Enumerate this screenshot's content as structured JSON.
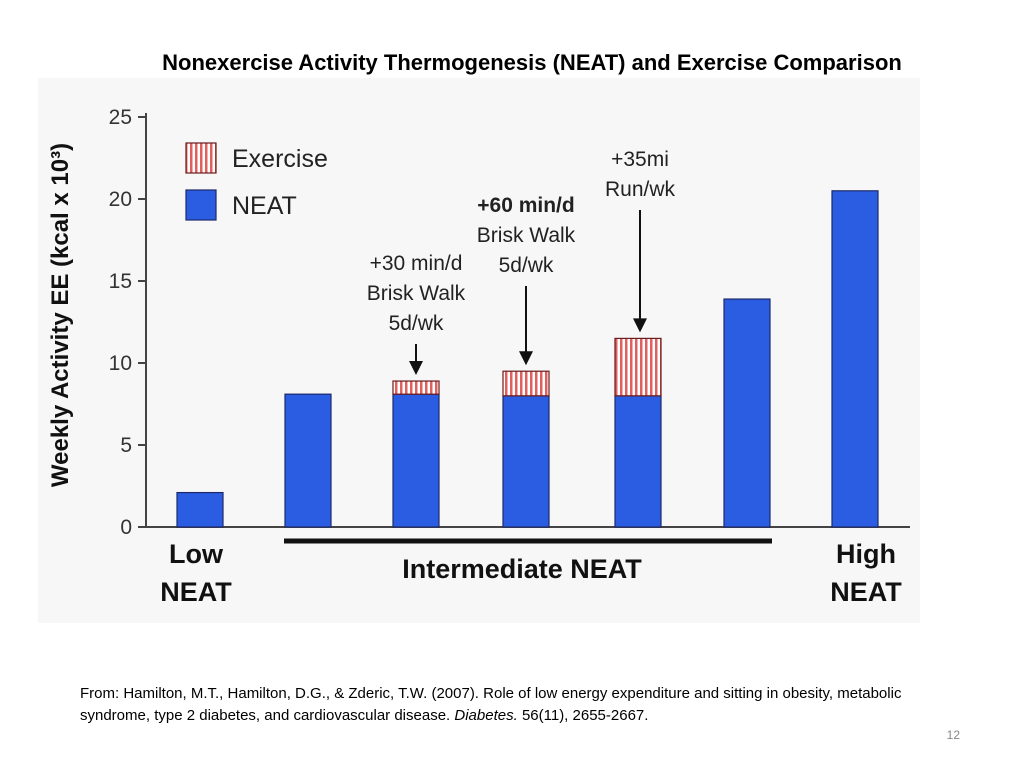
{
  "slide": {
    "title": "Nonexercise Activity Thermogenesis (NEAT) and Exercise Comparison",
    "page_number": "12",
    "citation": {
      "prefix": "From: Hamilton, M.T., Hamilton, D.G., & Zderic, T.W. (2007). Role of low energy expenditure and sitting in obesity, metabolic syndrome, type 2 diabetes, and cardiovascular disease.",
      "journal": "Diabetes.",
      "suffix": "56(11), 2655-2667."
    }
  },
  "chart_data": {
    "type": "bar",
    "stacked": true,
    "ylabel": "Weekly Activity EE (kcal x 10³)",
    "ylim": [
      0,
      25
    ],
    "yticks": [
      "0",
      "5",
      "10",
      "15",
      "20",
      "25"
    ],
    "grid": false,
    "legend_position": "top-left",
    "series": [
      {
        "name": "NEAT",
        "color": "#2b5de3",
        "values": [
          2.1,
          8.1,
          8.1,
          8.0,
          8.0,
          13.9,
          20.5
        ]
      },
      {
        "name": "Exercise",
        "color": "#e06060",
        "values": [
          0,
          0,
          0.8,
          1.5,
          3.5,
          0,
          0
        ]
      }
    ],
    "annotations": [
      {
        "bar_index": 2,
        "lines": [
          "+30 min/d",
          "Brisk Walk",
          "5d/wk"
        ],
        "bold_first": false
      },
      {
        "bar_index": 3,
        "lines": [
          "+60 min/d",
          "Brisk Walk",
          "5d/wk"
        ],
        "bold_first": true
      },
      {
        "bar_index": 4,
        "lines": [
          "+35mi",
          "Run/wk"
        ],
        "bold_first": false
      }
    ],
    "group_labels": {
      "low": [
        "Low",
        "NEAT"
      ],
      "intermediate": "Intermediate NEAT",
      "high": [
        "High",
        "NEAT"
      ]
    }
  }
}
